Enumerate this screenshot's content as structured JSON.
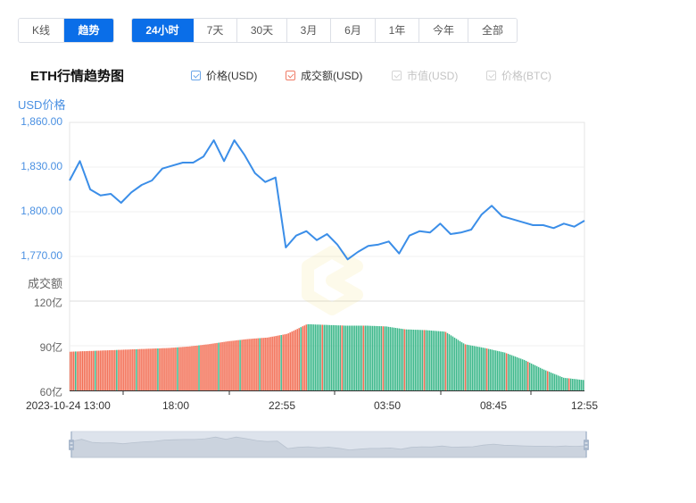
{
  "view_toggle": {
    "items": [
      {
        "label": "K线",
        "active": false
      },
      {
        "label": "趋势",
        "active": true
      }
    ]
  },
  "range_tabs": {
    "items": [
      {
        "label": "24小时",
        "active": true
      },
      {
        "label": "7天",
        "active": false
      },
      {
        "label": "30天",
        "active": false
      },
      {
        "label": "3月",
        "active": false
      },
      {
        "label": "6月",
        "active": false
      },
      {
        "label": "1年",
        "active": false
      },
      {
        "label": "今年",
        "active": false
      },
      {
        "label": "全部",
        "active": false
      }
    ]
  },
  "chart_header": {
    "title": "ETH行情趋势图",
    "legend": [
      {
        "label": "价格(USD)",
        "checked": true,
        "enabled": true
      },
      {
        "label": "成交额(USD)",
        "checked": true,
        "enabled": true
      },
      {
        "label": "市值(USD)",
        "checked": true,
        "enabled": false
      },
      {
        "label": "价格(BTC)",
        "checked": true,
        "enabled": false
      }
    ]
  },
  "axes": {
    "price_axis_title": "USD价格",
    "price_ticks": [
      "1,860.00",
      "1,830.00",
      "1,800.00",
      "1,770.00"
    ],
    "volume_axis_title": "成交额",
    "volume_ticks": [
      "120亿",
      "90亿",
      "60亿"
    ],
    "x_ticks": [
      "2023-10-24 13:00",
      "18:00",
      "22:55",
      "03:50",
      "08:45",
      "12:55"
    ]
  },
  "colors": {
    "price_line": "#3b8ee8",
    "volume_up": "#3db88b",
    "volume_down": "#f26a4f",
    "active_button": "#0a6ee8",
    "grid": "#eeeeee"
  },
  "chart_data": [
    {
      "type": "line",
      "title": "ETH行情趋势图 - 价格(USD)",
      "xlabel": "",
      "ylabel": "USD价格",
      "ylim": [
        1770,
        1860
      ],
      "x": [
        "13:00",
        "13:30",
        "14:00",
        "14:30",
        "15:00",
        "15:30",
        "16:00",
        "16:30",
        "17:00",
        "17:30",
        "18:00",
        "18:30",
        "19:00",
        "19:30",
        "20:00",
        "20:30",
        "21:00",
        "21:30",
        "22:00",
        "22:30",
        "22:55",
        "23:15",
        "23:35",
        "00:00",
        "00:30",
        "01:00",
        "01:30",
        "02:00",
        "02:30",
        "03:00",
        "03:30",
        "03:50",
        "04:20",
        "04:50",
        "05:20",
        "05:50",
        "06:20",
        "06:50",
        "07:20",
        "07:50",
        "08:20",
        "08:45",
        "09:15",
        "09:45",
        "10:15",
        "10:45",
        "11:15",
        "11:45",
        "12:15",
        "12:35",
        "12:55"
      ],
      "values": [
        1821,
        1834,
        1815,
        1811,
        1812,
        1806,
        1813,
        1818,
        1821,
        1829,
        1831,
        1833,
        1833,
        1837,
        1848,
        1834,
        1848,
        1838,
        1826,
        1820,
        1823,
        1776,
        1784,
        1787,
        1781,
        1785,
        1778,
        1768,
        1773,
        1777,
        1778,
        1780,
        1772,
        1784,
        1787,
        1786,
        1792,
        1785,
        1786,
        1788,
        1798,
        1804,
        1797,
        1795,
        1793,
        1791,
        1791,
        1789,
        1792,
        1790,
        1794
      ],
      "grid": true
    },
    {
      "type": "bar",
      "title": "ETH行情趋势图 - 成交额(USD)",
      "ylabel": "成交额",
      "ylim": [
        60,
        120
      ],
      "unit": "亿",
      "x": [
        "13:00",
        "14:00",
        "15:00",
        "16:00",
        "17:00",
        "18:00",
        "19:00",
        "20:00",
        "21:00",
        "22:00",
        "22:55",
        "23:30",
        "00:00",
        "01:00",
        "02:00",
        "03:00",
        "03:50",
        "05:00",
        "06:00",
        "07:00",
        "07:30",
        "08:00",
        "08:45",
        "09:30",
        "10:30",
        "11:30",
        "12:55"
      ],
      "values": [
        86,
        86.5,
        87,
        87.5,
        88,
        88.5,
        89.5,
        91,
        93,
        94.5,
        95.5,
        98,
        104.5,
        104,
        103.5,
        103.5,
        103,
        101,
        100.5,
        99.5,
        91,
        88.5,
        85.5,
        80.5,
        74,
        68.5,
        67
      ],
      "dominant_color": [
        "down",
        "down",
        "down",
        "down",
        "down",
        "down",
        "down",
        "down",
        "down",
        "down",
        "down",
        "down",
        "up",
        "up",
        "up",
        "up",
        "up",
        "up",
        "up",
        "up",
        "up",
        "up",
        "up",
        "up",
        "up",
        "up",
        "up"
      ]
    }
  ],
  "dataZoom": {
    "start": 0,
    "end": 100
  }
}
